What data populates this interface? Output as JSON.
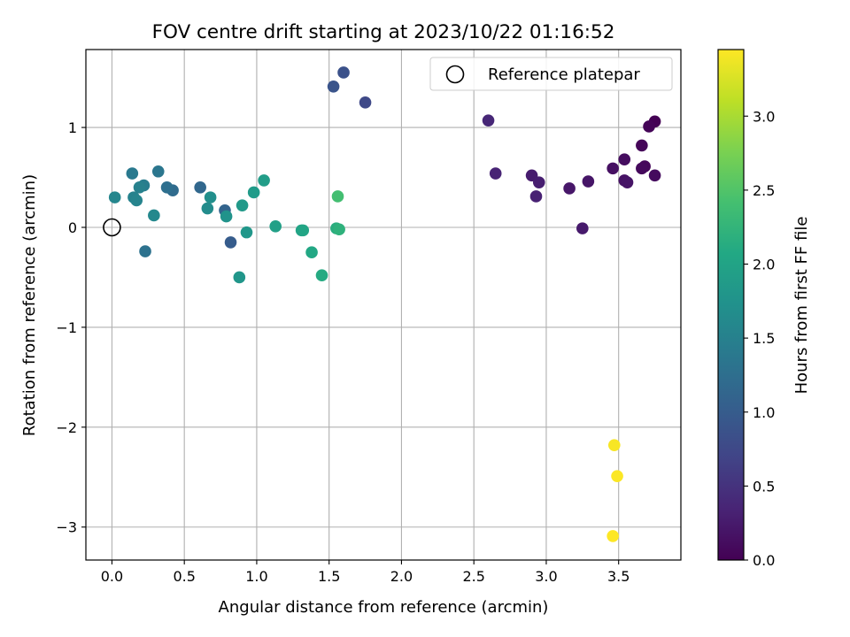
{
  "chart_data": {
    "type": "scatter",
    "title": "FOV centre drift starting at 2023/10/22 01:16:52",
    "xlabel": "Angular distance from reference (arcmin)",
    "ylabel": "Rotation from reference (arcmin)",
    "xlim": [
      -0.18,
      3.93
    ],
    "ylim": [
      -3.33,
      1.78
    ],
    "x_ticks": [
      0.0,
      0.5,
      1.0,
      1.5,
      2.0,
      2.5,
      3.0,
      3.5
    ],
    "x_tick_labels": [
      "0.0",
      "0.5",
      "1.0",
      "1.5",
      "2.0",
      "2.5",
      "3.0",
      "3.5"
    ],
    "y_ticks": [
      1,
      0,
      -1,
      -2,
      -3
    ],
    "y_tick_labels": [
      "1",
      "0",
      "−1",
      "−2",
      "−3"
    ],
    "grid": true,
    "legend": {
      "placement": "upper right",
      "entries": [
        {
          "label": "Reference platepar",
          "marker": "hollow-circle",
          "x": 0.0,
          "y": 0.0
        }
      ]
    },
    "colorbar": {
      "label": "Hours from first FF file",
      "colormap": "viridis",
      "range": [
        0.0,
        3.45
      ],
      "ticks": [
        0.0,
        0.5,
        1.0,
        1.5,
        2.0,
        2.5,
        3.0
      ],
      "tick_labels": [
        "0.0",
        "0.5",
        "1.0",
        "1.5",
        "2.0",
        "2.5",
        "3.0"
      ]
    },
    "points": [
      {
        "x": 3.75,
        "y": 1.06,
        "c": 0.0
      },
      {
        "x": 3.71,
        "y": 1.01,
        "c": 0.03
      },
      {
        "x": 3.66,
        "y": 0.82,
        "c": 0.05
      },
      {
        "x": 3.68,
        "y": 0.61,
        "c": 0.06
      },
      {
        "x": 3.66,
        "y": 0.59,
        "c": 0.08
      },
      {
        "x": 3.75,
        "y": 0.52,
        "c": 0.1
      },
      {
        "x": 3.54,
        "y": 0.68,
        "c": 0.12
      },
      {
        "x": 3.46,
        "y": 0.59,
        "c": 0.15
      },
      {
        "x": 3.54,
        "y": 0.47,
        "c": 0.17
      },
      {
        "x": 3.56,
        "y": 0.45,
        "c": 0.19
      },
      {
        "x": 3.29,
        "y": 0.46,
        "c": 0.2
      },
      {
        "x": 3.16,
        "y": 0.39,
        "c": 0.22
      },
      {
        "x": 3.25,
        "y": -0.01,
        "c": 0.25
      },
      {
        "x": 2.9,
        "y": 0.52,
        "c": 0.27
      },
      {
        "x": 2.95,
        "y": 0.45,
        "c": 0.29
      },
      {
        "x": 2.93,
        "y": 0.31,
        "c": 0.32
      },
      {
        "x": 2.65,
        "y": 0.54,
        "c": 0.35
      },
      {
        "x": 2.6,
        "y": 1.07,
        "c": 0.38
      },
      {
        "x": 1.75,
        "y": 1.25,
        "c": 0.75
      },
      {
        "x": 1.6,
        "y": 1.55,
        "c": 0.85
      },
      {
        "x": 1.53,
        "y": 1.41,
        "c": 0.9
      },
      {
        "x": 0.82,
        "y": -0.15,
        "c": 1.0
      },
      {
        "x": 0.78,
        "y": 0.17,
        "c": 1.1
      },
      {
        "x": 0.61,
        "y": 0.4,
        "c": 1.15
      },
      {
        "x": 0.42,
        "y": 0.37,
        "c": 1.2
      },
      {
        "x": 0.38,
        "y": 0.4,
        "c": 1.25
      },
      {
        "x": 0.23,
        "y": -0.24,
        "c": 1.3
      },
      {
        "x": 0.32,
        "y": 0.56,
        "c": 1.35
      },
      {
        "x": 0.14,
        "y": 0.54,
        "c": 1.4
      },
      {
        "x": 0.22,
        "y": 0.42,
        "c": 1.45
      },
      {
        "x": 0.19,
        "y": 0.4,
        "c": 1.5
      },
      {
        "x": 0.15,
        "y": 0.3,
        "c": 1.52
      },
      {
        "x": 0.17,
        "y": 0.27,
        "c": 1.55
      },
      {
        "x": 0.02,
        "y": 0.3,
        "c": 1.58
      },
      {
        "x": 0.29,
        "y": 0.12,
        "c": 1.6
      },
      {
        "x": 0.66,
        "y": 0.19,
        "c": 1.65
      },
      {
        "x": 0.68,
        "y": 0.3,
        "c": 1.7
      },
      {
        "x": 0.79,
        "y": 0.11,
        "c": 1.75
      },
      {
        "x": 0.88,
        "y": -0.5,
        "c": 1.8
      },
      {
        "x": 0.93,
        "y": -0.05,
        "c": 1.82
      },
      {
        "x": 0.9,
        "y": 0.22,
        "c": 1.85
      },
      {
        "x": 0.98,
        "y": 0.35,
        "c": 1.87
      },
      {
        "x": 1.05,
        "y": 0.47,
        "c": 1.9
      },
      {
        "x": 1.13,
        "y": 0.01,
        "c": 1.95
      },
      {
        "x": 1.31,
        "y": -0.03,
        "c": 2.0
      },
      {
        "x": 1.32,
        "y": -0.03,
        "c": 2.02
      },
      {
        "x": 1.38,
        "y": -0.25,
        "c": 2.05
      },
      {
        "x": 1.45,
        "y": -0.48,
        "c": 2.1
      },
      {
        "x": 1.55,
        "y": -0.01,
        "c": 2.15
      },
      {
        "x": 1.57,
        "y": -0.02,
        "c": 2.2
      },
      {
        "x": 1.56,
        "y": 0.31,
        "c": 2.4
      },
      {
        "x": 3.47,
        "y": -2.18,
        "c": 3.42
      },
      {
        "x": 3.49,
        "y": -2.49,
        "c": 3.44
      },
      {
        "x": 3.46,
        "y": -3.09,
        "c": 3.45
      }
    ]
  }
}
